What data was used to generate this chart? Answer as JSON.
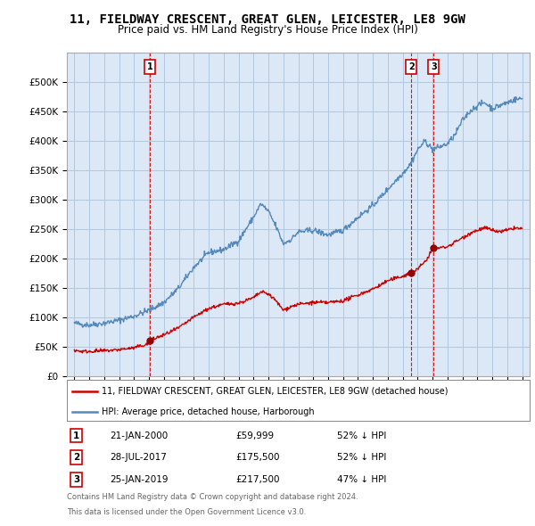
{
  "title": "11, FIELDWAY CRESCENT, GREAT GLEN, LEICESTER, LE8 9GW",
  "subtitle": "Price paid vs. HM Land Registry's House Price Index (HPI)",
  "ylim": [
    0,
    550000
  ],
  "yticks": [
    0,
    50000,
    100000,
    150000,
    200000,
    250000,
    300000,
    350000,
    400000,
    450000,
    500000
  ],
  "ytick_labels": [
    "£0",
    "£50K",
    "£100K",
    "£150K",
    "£200K",
    "£250K",
    "£300K",
    "£350K",
    "£400K",
    "£450K",
    "£500K"
  ],
  "sale_dates_num": [
    2000.056,
    2017.568,
    2019.069
  ],
  "sale_prices": [
    59999,
    175500,
    217500
  ],
  "sale_labels": [
    "1",
    "2",
    "3"
  ],
  "sale_label_texts": [
    "21-JAN-2000",
    "28-JUL-2017",
    "25-JAN-2019"
  ],
  "sale_price_texts": [
    "£59,999",
    "£175,500",
    "£217,500"
  ],
  "sale_hpi_texts": [
    "52% ↓ HPI",
    "52% ↓ HPI",
    "47% ↓ HPI"
  ],
  "line_color_property": "#cc0000",
  "line_color_hpi": "#5588bb",
  "vline_color": "#cc0000",
  "marker_color": "#990000",
  "legend_property": "11, FIELDWAY CRESCENT, GREAT GLEN, LEICESTER, LE8 9GW (detached house)",
  "legend_hpi": "HPI: Average price, detached house, Harborough",
  "footer_line1": "Contains HM Land Registry data © Crown copyright and database right 2024.",
  "footer_line2": "This data is licensed under the Open Government Licence v3.0.",
  "background_color": "#ffffff",
  "plot_bg_color": "#dce8f5",
  "grid_color": "#b0c8e0",
  "title_fontsize": 10,
  "subtitle_fontsize": 8.5
}
